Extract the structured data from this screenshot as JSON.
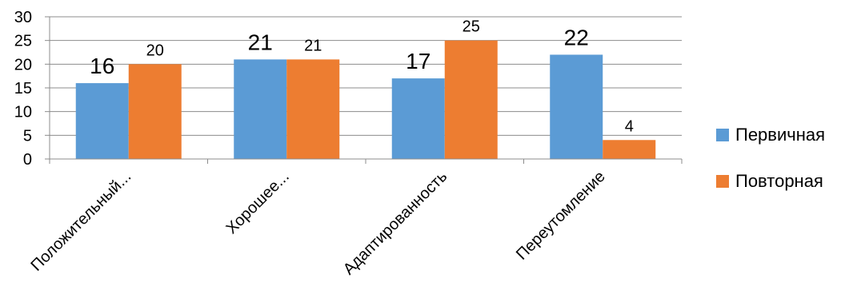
{
  "chart_data": {
    "type": "bar",
    "categories": [
      "Положительный...",
      "Хорошее...",
      "Адаптированность",
      "Переутомление"
    ],
    "series": [
      {
        "name": "Первичная",
        "values": [
          16,
          21,
          17,
          22
        ],
        "color": "#5B9BD5"
      },
      {
        "name": "Повторная",
        "values": [
          20,
          21,
          25,
          4
        ],
        "color": "#ED7D31"
      }
    ],
    "ylim": [
      0,
      30
    ],
    "yticks": [
      "0",
      "5",
      "10",
      "15",
      "20",
      "25",
      "30"
    ],
    "grid": true,
    "legend_position": "right"
  }
}
